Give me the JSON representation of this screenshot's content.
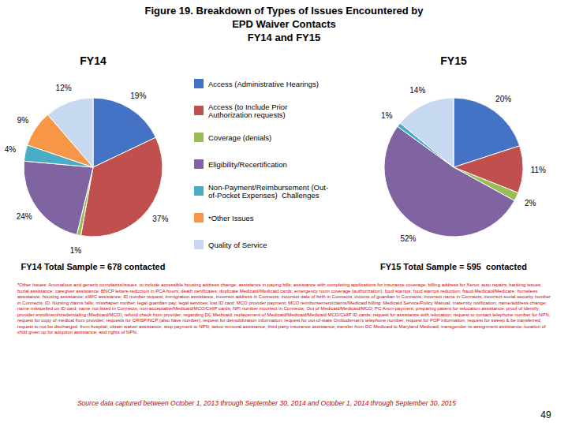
{
  "title": [
    "Figure 19. Breakdown of Types of Issues Encountered by",
    "EPD Waiver Contacts",
    "FY14 and FY15"
  ],
  "annotations": [
    "*Other Issues: Anomalous and generic complaints/issues  to include accessible housing address change; assistance in paying bills; assistance with completing applications for insurance coverage; billing address for Xerox; auto repairs; banking issues; burial assistance; caregiver assistance; BNCP letters-reduction in PCA hours; death certificates; duplicate Medicaid/Medicaid cards; emergency room coverage (authorization); food stamps; food stamps reduction; fraud-Medicaid/Medicare; homeless assistance; housing assistance; eWIC assistance; ID number request; immigration assistance, incorrect address in Connects; incorrect date of birth in Connects; income of guardian in Connects; incorrect name in Connects; incorrect social security number in Connects; ID. Nursing claims falls; misshapen mother; legal guardian pay; legal services; lost ID card; MCO provider payment; MCO reimbursement/claims/Medicaid billing; Medicaid Service/Policy Manual; maternity notification; name/address change; name misspelled on ID card; name not listed in Connects; non-acceptable/Medicaid/MCO/CHIP cards; NPI number incorrect in Connects; Out of Medicaid/Medicaid/MCO; PC Anon-payment; preparing patient for relocation assistance; proof of identify; provider enrollment/credentialing (Medicaid/MCO); refund check from provider; regarding DC Medicaid; replacement of Medicaid/Medicaid/Medicaid MCO/CHIP ID cards; request for assistance with relocation; request to contact telephone number for NPN; request for copy of medical from provider; requests for CRISP/NCP (also have number); request for demobilization information; request for out-of-state Ombudsman's telephone number; request for POP information; request for sweep & be transferred; request to not be discharged  from hospital; obtain waiver assistance; stop payment to NPN; tattoo removal assistance; third party insurance assistance; transfer from DC Medicaid to Maryland Medicaid; transgender re-assignment assistance; location of child given up for adoption assistance; and rights of NPN.",
    "Source data captured between October 1, 2013 through September 30, 2014 and October 1, 2014 through September 30, 2015",
    "49"
  ],
  "chart_data": [
    {
      "type": "pie",
      "title": "FY14",
      "subtitle": "FY14 Total Sample = 678 contacted",
      "categories": [
        "Access (Administrative Hearings)",
        "Access (to Include Prior\nAuthorization requests)",
        "Coverage (denials)",
        "Eligibility/Recertification",
        "Non-Payment/Reimbursement (Out-\nof-Pocket Expenses)  Challenges",
        "*Other Issues",
        "Quality of Service"
      ],
      "values": [
        19,
        37,
        1,
        24,
        4,
        9,
        12
      ],
      "value_labels": [
        "19%",
        "37%",
        "1%",
        "24%",
        "4%",
        "9%",
        "12%"
      ],
      "colors": [
        "#4472C4",
        "#C0504D",
        "#9BBB59",
        "#8064A2",
        "#4BACC6",
        "#F79646",
        "#C6D9F0"
      ],
      "data_labels": true,
      "legend": "center"
    },
    {
      "type": "pie",
      "title": "FY15",
      "subtitle": "FY15 Total Sample = 595  contacted",
      "categories": [
        "Access (Administrative Hearings)",
        "Access (to Include Prior\nAuthorization requests)",
        "Coverage (denials)",
        "Eligibility/Recertification",
        "Non-Payment/Reimbursement (Out-\nof-Pocket Expenses)  Challenges",
        "Quality of Service"
      ],
      "values": [
        20,
        11,
        2,
        52,
        1,
        14
      ],
      "value_labels": [
        "20%",
        "11%",
        "2%",
        "52%",
        "1%",
        "14%"
      ],
      "colors": [
        "#4472C4",
        "#C0504D",
        "#9BBB59",
        "#8064A2",
        "#4BACC6",
        "#C6D9F0"
      ],
      "data_labels": true
    }
  ]
}
